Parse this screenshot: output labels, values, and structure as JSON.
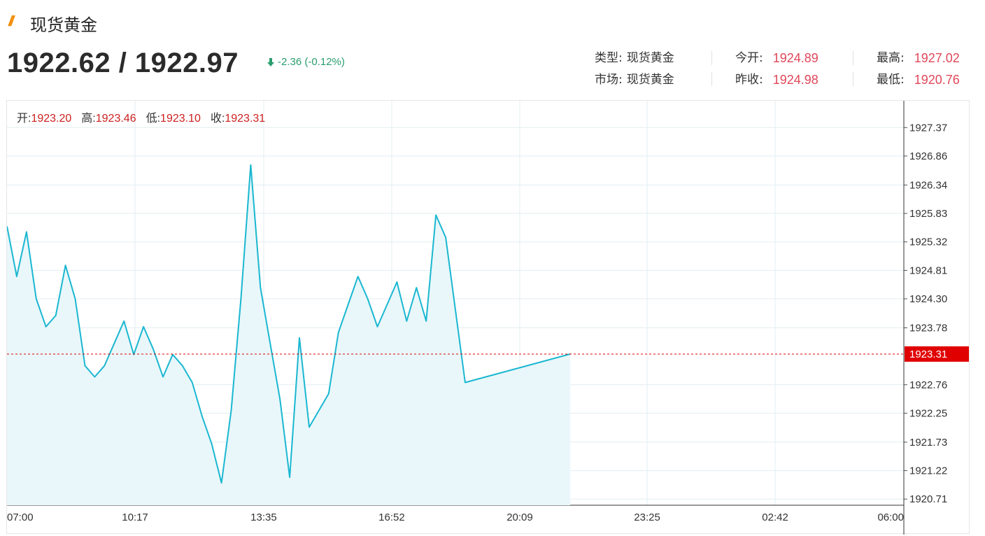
{
  "header": {
    "title": "现货黄金"
  },
  "quote": {
    "price": "1922.62 / 1922.97",
    "change": "-2.36 (-0.12%)"
  },
  "info": {
    "type_label": "类型:",
    "type_value": "现货黄金",
    "market_label": "市场:",
    "market_value": "现货黄金",
    "open_label": "今开:",
    "open_value": "1924.89",
    "prev_label": "昨收:",
    "prev_value": "1924.98",
    "high_label": "最高:",
    "high_value": "1927.02",
    "low_label": "最低:",
    "low_value": "1920.76"
  },
  "ohlc": {
    "o_label": "开:",
    "o": "1923.20",
    "h_label": "高:",
    "h": "1923.46",
    "l_label": "低:",
    "l": "1923.10",
    "c_label": "收:",
    "c": "1923.31"
  },
  "colors": {
    "line": "#1ab7d1",
    "fill": "#e9f7fa",
    "current": "#e00000",
    "up": "#2a9d6e",
    "value": "#e0475a"
  },
  "chart_data": {
    "type": "area",
    "y_ticks": [
      "1927.37",
      "1926.86",
      "1926.34",
      "1925.83",
      "1925.32",
      "1924.81",
      "1924.30",
      "1923.78",
      "1922.76",
      "1922.25",
      "1921.73",
      "1921.22",
      "1920.71"
    ],
    "x_ticks": [
      "07:00",
      "10:17",
      "13:35",
      "16:52",
      "20:09",
      "23:25",
      "02:42",
      "06:00"
    ],
    "ylim": [
      1920.6,
      1927.85
    ],
    "current_value": "1923.31",
    "series": [
      {
        "x": [
          "07:00",
          "07:15",
          "07:30",
          "07:45",
          "08:00",
          "08:15",
          "08:30",
          "08:45",
          "09:00",
          "09:15",
          "09:30",
          "09:45",
          "10:00",
          "10:15",
          "10:30",
          "10:45",
          "11:00",
          "11:15",
          "11:30",
          "11:45",
          "12:00",
          "12:15",
          "12:30",
          "12:45",
          "13:00",
          "13:15",
          "13:30",
          "13:45",
          "14:00",
          "14:15",
          "14:30",
          "14:45",
          "15:00",
          "15:15",
          "15:30",
          "15:45",
          "16:00",
          "16:15",
          "16:30",
          "16:45",
          "17:00",
          "17:15",
          "17:30",
          "17:45",
          "18:00",
          "18:15",
          "18:30",
          "18:45",
          "19:00",
          "19:15",
          "19:30",
          "19:45",
          "20:00",
          "20:15",
          "20:30",
          "20:45",
          "21:00",
          "21:15",
          "21:30",
          "21:45"
        ],
        "values": [
          1925.6,
          1924.7,
          1925.5,
          1924.3,
          1923.8,
          1924.0,
          1924.9,
          1924.3,
          1923.1,
          1922.9,
          1923.1,
          1923.5,
          1923.9,
          1923.3,
          1923.8,
          1923.4,
          1922.9,
          1923.3,
          1923.1,
          1922.8,
          1922.2,
          1921.7,
          1921.0,
          1922.3,
          1924.3,
          1926.7,
          1924.5,
          1923.5,
          1922.5,
          1921.1,
          1923.6,
          1922.0,
          1922.3,
          1922.6,
          1923.7,
          1924.2,
          1924.7,
          1924.3,
          1923.8,
          1924.2,
          1924.6,
          1923.9,
          1924.5,
          1923.9,
          1925.8,
          1925.4,
          1924.1,
          1922.8,
          1923.31,
          1923.31,
          1923.31,
          1923.31,
          1923.31,
          1923.31,
          1923.31,
          1923.31,
          1923.31,
          1923.31,
          1923.31,
          1923.31
        ]
      }
    ]
  }
}
